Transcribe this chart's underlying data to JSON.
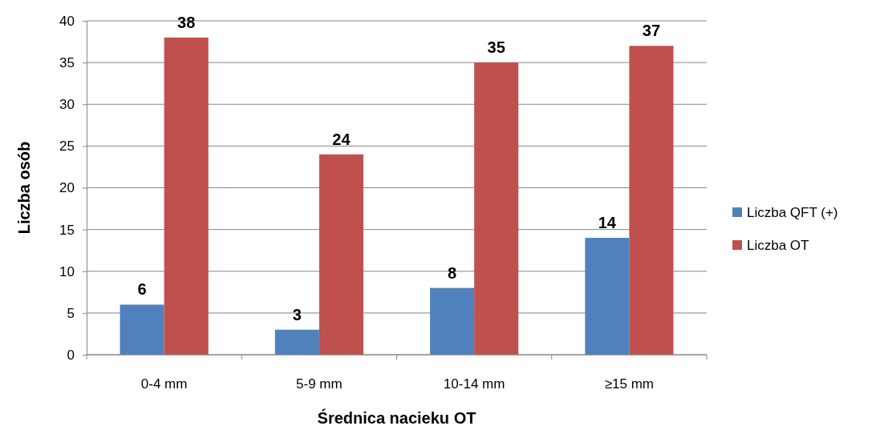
{
  "chart_data": {
    "type": "bar",
    "xlabel": "Średnica nacieku OT",
    "ylabel": "Liczba osób",
    "categories": [
      "0-4 mm",
      "5-9 mm",
      "10-14 mm",
      "≥15 mm"
    ],
    "series": [
      {
        "name": "Liczba QFT (+)",
        "color": "#4f81bd",
        "values": [
          6,
          3,
          8,
          14
        ]
      },
      {
        "name": "Liczba OT",
        "color": "#c0504d",
        "values": [
          38,
          24,
          35,
          37
        ]
      }
    ],
    "ylim": [
      0,
      40
    ],
    "yticks": [
      0,
      5,
      10,
      15,
      20,
      25,
      30,
      35,
      40
    ],
    "grid": "y",
    "legend": "right",
    "data_labels": true
  }
}
